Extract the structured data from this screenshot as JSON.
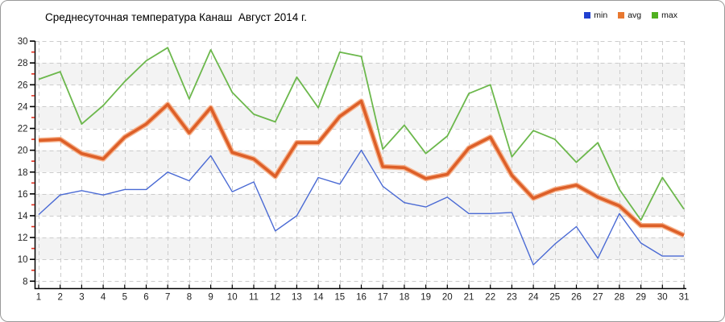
{
  "title": "Среднесуточная температура Канаш  Август 2014 г.",
  "legend": [
    {
      "label": "min",
      "swatch_color": "#2040d0"
    },
    {
      "label": "avg",
      "swatch_color": "#e87830"
    },
    {
      "label": "max",
      "swatch_color": "#50b020"
    }
  ],
  "colors": {
    "min_line": "#4a6ad4",
    "avg_line": "#dd5f28",
    "avg_halo": "#f6b28c",
    "max_line": "#6cb84c",
    "grid": "#cccccc",
    "band": "#f3f3f3",
    "axis": "#000000",
    "minor_tick": "#e03020",
    "tick_label": "#222222"
  },
  "chart_data": {
    "type": "line",
    "title": "Среднесуточная температура Канаш  Август 2014 г.",
    "x": [
      1,
      2,
      3,
      4,
      5,
      6,
      7,
      8,
      9,
      10,
      11,
      12,
      13,
      14,
      15,
      16,
      17,
      18,
      19,
      20,
      21,
      22,
      23,
      24,
      25,
      26,
      27,
      28,
      29,
      30,
      31
    ],
    "xlabel": "",
    "ylabel": "",
    "ylim": [
      8,
      30
    ],
    "ytick_step": 2,
    "grid": true,
    "background_bands": "alternating 2-degree stripes",
    "legend_position": "top-right",
    "series": [
      {
        "name": "min",
        "values": [
          14.1,
          15.9,
          16.3,
          15.9,
          16.4,
          16.4,
          18.0,
          17.2,
          19.5,
          16.2,
          17.1,
          12.6,
          14.0,
          17.5,
          16.9,
          20.0,
          16.7,
          15.2,
          14.8,
          15.7,
          14.2,
          14.2,
          14.3,
          9.5,
          11.4,
          13.0,
          10.1,
          14.2,
          11.5,
          10.3,
          10.3
        ]
      },
      {
        "name": "avg",
        "values": [
          20.9,
          21.0,
          19.7,
          19.2,
          21.2,
          22.4,
          24.2,
          21.6,
          23.9,
          19.8,
          19.2,
          17.6,
          20.7,
          20.7,
          23.1,
          24.5,
          18.5,
          18.4,
          17.4,
          17.8,
          20.2,
          21.2,
          17.7,
          15.6,
          16.4,
          16.8,
          15.7,
          14.9,
          13.1,
          13.1,
          12.2
        ]
      },
      {
        "name": "max",
        "values": [
          26.5,
          27.2,
          22.4,
          24.1,
          26.3,
          28.2,
          29.4,
          24.7,
          29.2,
          25.3,
          23.3,
          22.6,
          26.7,
          23.9,
          29.0,
          28.6,
          20.1,
          22.3,
          19.7,
          21.3,
          25.2,
          26.0,
          19.4,
          21.8,
          21.0,
          18.9,
          20.7,
          16.4,
          13.6,
          17.5,
          14.6
        ]
      }
    ]
  }
}
